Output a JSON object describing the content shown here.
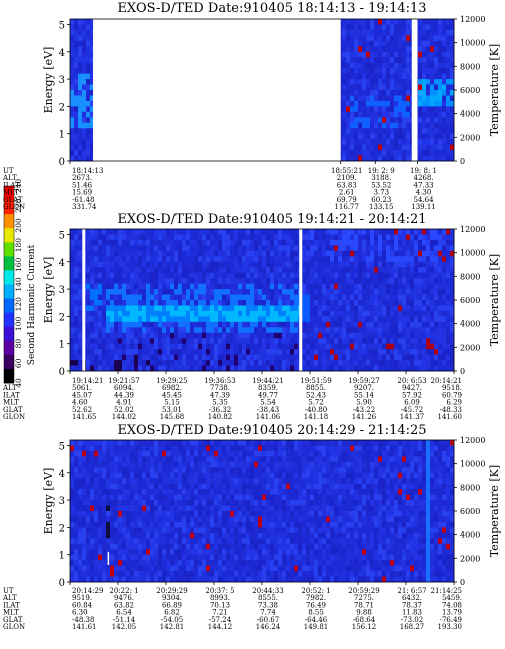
{
  "chart_data": [
    {
      "type": "heatmap",
      "title": "EXOS-D/TED   Date:910405  18:14:13 - 19:14:13",
      "ylabel": "Energy [eV]",
      "y2label": "Temperature [K]",
      "ylim": [
        0,
        5.2
      ],
      "y2lim": [
        0,
        12000
      ],
      "yticks": [
        "0",
        "1",
        "2",
        "3",
        "4",
        "5"
      ],
      "y2ticks": [
        "0",
        "2000",
        "4000",
        "6000",
        "8000",
        "10000",
        "12000"
      ],
      "row_labels": [
        "UT",
        "ALT",
        "ILAT",
        "MLT",
        "GLAT",
        "GLON"
      ],
      "columns": [
        {
          "UT": "18:14:13",
          "ALT": "2673.",
          "ILAT": "51.46",
          "MLT": "15.69",
          "GLAT": "-61.48",
          "GLON": "331.74"
        },
        {
          "UT": "18:55:21",
          "ALT": "2109.",
          "ILAT": "63.83",
          "MLT": "2.61",
          "GLAT": "69.79",
          "GLON": "116.77"
        },
        {
          "UT": "19: 2: 9",
          "ALT": "3188.",
          "ILAT": "53.52",
          "MLT": "3.73",
          "GLAT": "60.23",
          "GLON": "133.15"
        },
        {
          "UT": "19: 8: 1",
          "ALT": "4268.",
          "ILAT": "47.33",
          "MLT": "4.30",
          "GLAT": "54.64",
          "GLON": "139.11"
        }
      ]
    },
    {
      "type": "heatmap",
      "title": "EXOS-D/TED   Date:910405  19:14:21 - 20:14:21",
      "ylabel": "Energy [eV]",
      "y2label": "Temperature [K]",
      "ylim": [
        0,
        5.2
      ],
      "y2lim": [
        0,
        12000
      ],
      "yticks": [
        "0",
        "1",
        "2",
        "3",
        "4",
        "5"
      ],
      "y2ticks": [
        "0",
        "2000",
        "4000",
        "6000",
        "8000",
        "10000",
        "12000"
      ],
      "row_labels": [
        "UT",
        "ALT",
        "ILAT",
        "MLT",
        "GLAT",
        "GLON"
      ],
      "columns": [
        {
          "UT": "19:14:21",
          "ALT": "5061.",
          "ILAT": "45.07",
          "MLT": "4.60",
          "GLAT": "52.62",
          "GLON": "141.65"
        },
        {
          "UT": "19:21:57",
          "ALT": "6094.",
          "ILAT": "44.39",
          "MLT": "4.91",
          "GLAT": "52.02",
          "GLON": "144.02"
        },
        {
          "UT": "19:29:25",
          "ALT": "6982.",
          "ILAT": "45.45",
          "MLT": "5.15",
          "GLAT": "53.01",
          "GLON": "145.68"
        },
        {
          "UT": "19:36:53",
          "ALT": "7738.",
          "ILAT": "47.39",
          "MLT": "5.35",
          "GLAT": "-36.32",
          "GLON": "140.82"
        },
        {
          "UT": "19:44:21",
          "ALT": "8359.",
          "ILAT": "49.77",
          "MLT": "5.54",
          "GLAT": "-38.43",
          "GLON": "141.06"
        },
        {
          "UT": "19:51:59",
          "ALT": "8855.",
          "ILAT": "52.43",
          "MLT": "5.72",
          "GLAT": "-40.80",
          "GLON": "141.18"
        },
        {
          "UT": "19:59:27",
          "ALT": "9207.",
          "ILAT": "55.14",
          "MLT": "5.90",
          "GLAT": "-43.22",
          "GLON": "141.26"
        },
        {
          "UT": "20: 6:53",
          "ALT": "9427.",
          "ILAT": "57.92",
          "MLT": "6.09",
          "GLAT": "-45.72",
          "GLON": "141.37"
        },
        {
          "UT": "20:14:21",
          "ALT": "9518.",
          "ILAT": "60.79",
          "MLT": "6.29",
          "GLAT": "-48.33",
          "GLON": "141.60"
        }
      ]
    },
    {
      "type": "heatmap",
      "title": "EXOS-D/TED   Date:910405  20:14:29 - 21:14:25",
      "ylabel": "Energy [eV]",
      "y2label": "Temperature [K]",
      "ylim": [
        0,
        5.2
      ],
      "y2lim": [
        0,
        12000
      ],
      "yticks": [
        "0",
        "1",
        "2",
        "3",
        "4",
        "5"
      ],
      "y2ticks": [
        "0",
        "2000",
        "4000",
        "6000",
        "8000",
        "10000",
        "12000"
      ],
      "row_labels": [
        "UT",
        "ALT",
        "ILAT",
        "MLT",
        "GLAT",
        "GLON"
      ],
      "columns": [
        {
          "UT": "20:14:29",
          "ALT": "9519.",
          "ILAT": "60.84",
          "MLT": "6.30",
          "GLAT": "-48.38",
          "GLON": "141.61"
        },
        {
          "UT": "20:22: 1",
          "ALT": "9476.",
          "ILAT": "63.82",
          "MLT": "6.54",
          "GLAT": "-51.14",
          "GLON": "142.05"
        },
        {
          "UT": "20:29:29",
          "ALT": "9304.",
          "ILAT": "66.89",
          "MLT": "6.82",
          "GLAT": "-54.05",
          "GLON": "142.81"
        },
        {
          "UT": "20:37: 5",
          "ALT": "8993.",
          "ILAT": "70.13",
          "MLT": "7.21",
          "GLAT": "-57.24",
          "GLON": "144.12"
        },
        {
          "UT": "20:44:33",
          "ALT": "8555.",
          "ILAT": "73.38",
          "MLT": "7.74",
          "GLAT": "-60.67",
          "GLON": "146.24"
        },
        {
          "UT": "20:52: 1",
          "ALT": "7982.",
          "ILAT": "76.49",
          "MLT": "8.55",
          "GLAT": "-64.46",
          "GLON": "149.81"
        },
        {
          "UT": "20:59:29",
          "ALT": "7275.",
          "ILAT": "78.71",
          "MLT": "9.88",
          "GLAT": "-68.64",
          "GLON": "156.12"
        },
        {
          "UT": "21: 6:57",
          "ALT": "6432.",
          "ILAT": "78.37",
          "MLT": "11.83",
          "GLAT": "-73.02",
          "GLON": "168.27"
        },
        {
          "UT": "21:14:25",
          "ALT": "5459.",
          "ILAT": "74.08",
          "MLT": "13.79",
          "GLAT": "-76.49",
          "GLON": "193.30"
        }
      ]
    }
  ],
  "colorbar": {
    "label": "Second Harmonic Current",
    "ticks": [
      "40",
      "60",
      "80",
      "100",
      "120",
      "140",
      "160",
      "180",
      "200",
      "220",
      "240"
    ],
    "range": [
      40,
      240
    ],
    "colors": [
      "#000000",
      "#3a0060",
      "#5a00a0",
      "#3c10d8",
      "#2030ff",
      "#0068ff",
      "#00b0ff",
      "#00e8e8",
      "#00c040",
      "#60e000",
      "#e8e800",
      "#ff9000",
      "#ff2000",
      "#ff0000"
    ]
  }
}
